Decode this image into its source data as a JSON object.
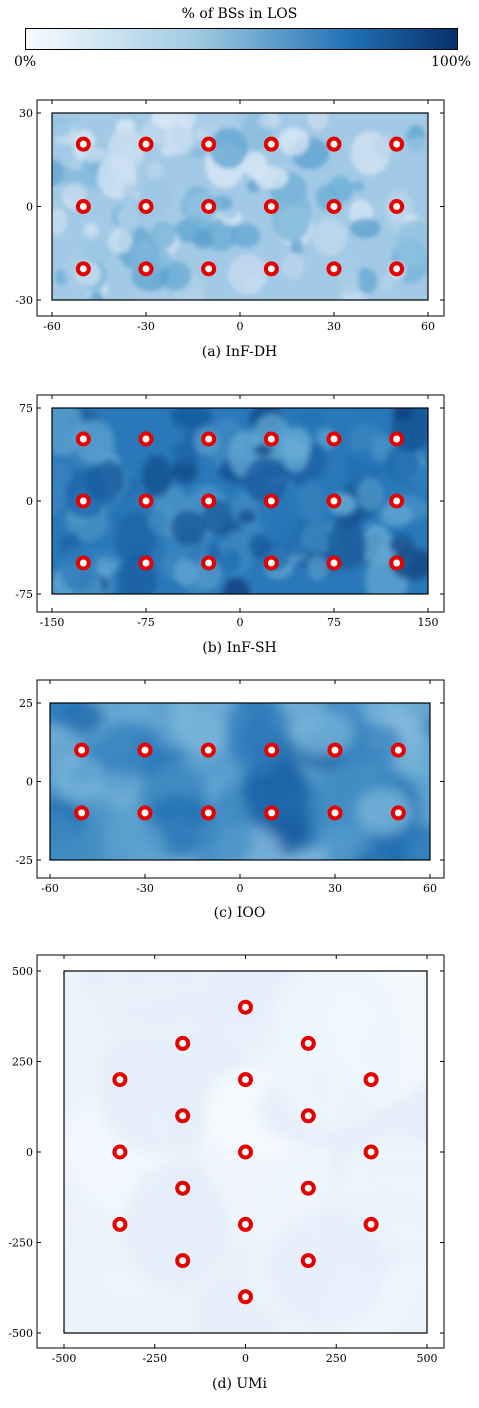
{
  "colorbar": {
    "title": "% of BSs in LOS",
    "min_label": "0%",
    "max_label": "100%",
    "color_low": "#f7fbff",
    "color_high": "#08306b"
  },
  "chart_data": [
    {
      "type": "heatmap",
      "caption": "(a) InF-DH",
      "xlim": [
        -60,
        60
      ],
      "ylim": [
        -30,
        30
      ],
      "xticks": [
        -60,
        -30,
        0,
        30,
        60
      ],
      "yticks": [
        -30,
        0,
        30
      ],
      "los_level": 0.35,
      "bs_positions": [
        [
          -50,
          20
        ],
        [
          -30,
          20
        ],
        [
          -10,
          20
        ],
        [
          10,
          20
        ],
        [
          30,
          20
        ],
        [
          50,
          20
        ],
        [
          -50,
          0
        ],
        [
          -30,
          0
        ],
        [
          -10,
          0
        ],
        [
          10,
          0
        ],
        [
          30,
          0
        ],
        [
          50,
          0
        ],
        [
          -50,
          -20
        ],
        [
          -30,
          -20
        ],
        [
          -10,
          -20
        ],
        [
          10,
          -20
        ],
        [
          30,
          -20
        ],
        [
          50,
          -20
        ]
      ],
      "marker_color": "#e50000"
    },
    {
      "type": "heatmap",
      "caption": "(b) InF-SH",
      "xlim": [
        -150,
        150
      ],
      "ylim": [
        -75,
        75
      ],
      "xticks": [
        -150,
        -75,
        0,
        75,
        150
      ],
      "yticks": [
        -75,
        0,
        75
      ],
      "los_level": 0.72,
      "bs_positions": [
        [
          -125,
          50
        ],
        [
          -75,
          50
        ],
        [
          -25,
          50
        ],
        [
          25,
          50
        ],
        [
          75,
          50
        ],
        [
          125,
          50
        ],
        [
          -125,
          0
        ],
        [
          -75,
          0
        ],
        [
          -25,
          0
        ],
        [
          25,
          0
        ],
        [
          75,
          0
        ],
        [
          125,
          0
        ],
        [
          -125,
          -50
        ],
        [
          -75,
          -50
        ],
        [
          -25,
          -50
        ],
        [
          25,
          -50
        ],
        [
          75,
          -50
        ],
        [
          125,
          -50
        ]
      ],
      "marker_color": "#e50000"
    },
    {
      "type": "heatmap",
      "caption": "(c) IOO",
      "xlim": [
        -60,
        60
      ],
      "ylim": [
        -25,
        25
      ],
      "xticks": [
        -60,
        -30,
        0,
        30,
        60
      ],
      "yticks": [
        -25,
        0,
        25
      ],
      "los_level": 0.62,
      "bs_positions": [
        [
          -50,
          10
        ],
        [
          -30,
          10
        ],
        [
          -10,
          10
        ],
        [
          10,
          10
        ],
        [
          30,
          10
        ],
        [
          50,
          10
        ],
        [
          -50,
          -10
        ],
        [
          -30,
          -10
        ],
        [
          -10,
          -10
        ],
        [
          10,
          -10
        ],
        [
          30,
          -10
        ],
        [
          50,
          -10
        ]
      ],
      "marker_color": "#e50000"
    },
    {
      "type": "heatmap",
      "caption": "(d) UMi",
      "xlim": [
        -500,
        500
      ],
      "ylim": [
        -500,
        500
      ],
      "xticks": [
        -500,
        -250,
        0,
        250,
        500
      ],
      "yticks": [
        -500,
        -250,
        0,
        250,
        500
      ],
      "los_level": 0.06,
      "bs_positions": [
        [
          0,
          400
        ],
        [
          -173,
          300
        ],
        [
          173,
          300
        ],
        [
          -346,
          200
        ],
        [
          0,
          200
        ],
        [
          346,
          200
        ],
        [
          -173,
          100
        ],
        [
          173,
          100
        ],
        [
          -346,
          0
        ],
        [
          0,
          0
        ],
        [
          346,
          0
        ],
        [
          -173,
          -100
        ],
        [
          173,
          -100
        ],
        [
          -346,
          -200
        ],
        [
          0,
          -200
        ],
        [
          346,
          -200
        ],
        [
          -173,
          -300
        ],
        [
          173,
          -300
        ],
        [
          0,
          -400
        ]
      ],
      "marker_color": "#e50000"
    }
  ]
}
